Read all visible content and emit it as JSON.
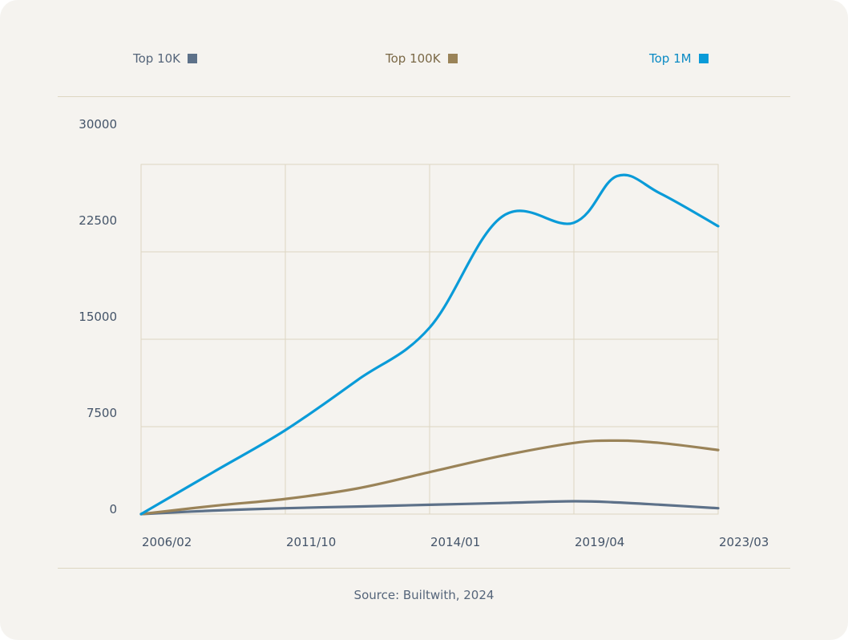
{
  "source": "Source: Builtwith, 2024",
  "colors": {
    "background": "#f5f3ef",
    "grid": "#ddd6c2",
    "text": "#445469"
  },
  "chart_data": {
    "type": "line",
    "title": "",
    "xlabel": "",
    "ylabel": "",
    "x_tick_labels": [
      "2006/02",
      "2011/10",
      "2014/01",
      "2019/04",
      "2023/03"
    ],
    "y_tick_labels": [
      "30000",
      "22500",
      "15000",
      "7500",
      "0"
    ],
    "ylim": [
      0,
      30000
    ],
    "grid": true,
    "legend_position": "top",
    "x": [
      0,
      0.5,
      1,
      1.5,
      2,
      2.5,
      3,
      3.3,
      3.6,
      4
    ],
    "series": [
      {
        "name": "Top 10K",
        "color": "#5d7189",
        "values": [
          0,
          300,
          500,
          650,
          800,
          950,
          1100,
          1000,
          800,
          500
        ]
      },
      {
        "name": "Top 100K",
        "color": "#9a8358",
        "values": [
          0,
          700,
          1300,
          2200,
          3600,
          5000,
          6100,
          6300,
          6100,
          5500
        ]
      },
      {
        "name": "Top 1M",
        "color": "#0a9bd8",
        "values": [
          0,
          3600,
          7200,
          11500,
          16000,
          25500,
          25000,
          29000,
          27500,
          24700
        ]
      }
    ]
  }
}
